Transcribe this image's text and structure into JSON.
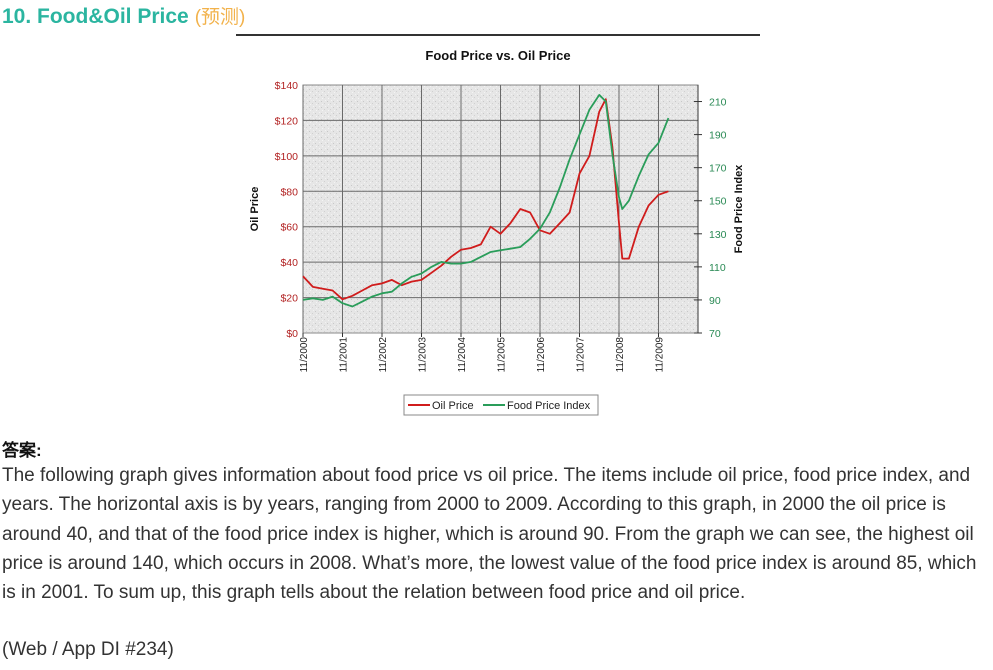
{
  "heading": {
    "number_title": "10. Food&Oil Price",
    "note": "(预测)"
  },
  "colors": {
    "heading": "#2bb5a0",
    "heading_note": "#f2b24b",
    "oil": "#d01c1c",
    "food": "#2a9d5a"
  },
  "chart_data": {
    "type": "line",
    "title": "Food Price vs. Oil Price",
    "ylabel": "Oil Price",
    "y2label": "Food Price Index",
    "ylim": [
      0,
      140
    ],
    "y2lim": [
      70,
      220
    ],
    "y_ticks": [
      "$0",
      "$20",
      "$40",
      "$60",
      "$80",
      "$100",
      "$120",
      "$140"
    ],
    "y2_ticks": [
      "70",
      "90",
      "110",
      "130",
      "150",
      "170",
      "190",
      "210"
    ],
    "x_ticks": [
      "11/2000",
      "11/2001",
      "11/2002",
      "11/2003",
      "11/2004",
      "11/2005",
      "11/2006",
      "11/2007",
      "11/2008",
      "11/2009"
    ],
    "grid": true,
    "legend_position": "bottom",
    "series": [
      {
        "name": "Oil Price",
        "axis": "left",
        "x": [
          "2000-11",
          "2001-02",
          "2001-05",
          "2001-08",
          "2001-11",
          "2002-02",
          "2002-05",
          "2002-08",
          "2002-11",
          "2003-02",
          "2003-05",
          "2003-08",
          "2003-11",
          "2004-02",
          "2004-05",
          "2004-08",
          "2004-11",
          "2005-02",
          "2005-05",
          "2005-08",
          "2005-11",
          "2006-02",
          "2006-05",
          "2006-08",
          "2006-11",
          "2007-02",
          "2007-05",
          "2007-08",
          "2007-11",
          "2008-02",
          "2008-05",
          "2008-07",
          "2008-09",
          "2008-11",
          "2008-12",
          "2009-02",
          "2009-05",
          "2009-08",
          "2009-11",
          "2010-02"
        ],
        "values": [
          32,
          26,
          25,
          24,
          19,
          21,
          24,
          27,
          28,
          30,
          27,
          29,
          30,
          34,
          38,
          43,
          47,
          48,
          50,
          60,
          56,
          62,
          70,
          68,
          58,
          56,
          62,
          68,
          90,
          100,
          125,
          132,
          105,
          62,
          42,
          42,
          60,
          72,
          78,
          80
        ]
      },
      {
        "name": "Food Price Index",
        "axis": "right",
        "x": [
          "2000-11",
          "2001-02",
          "2001-05",
          "2001-08",
          "2001-11",
          "2002-02",
          "2002-05",
          "2002-08",
          "2002-11",
          "2003-02",
          "2003-05",
          "2003-08",
          "2003-11",
          "2004-02",
          "2004-05",
          "2004-08",
          "2004-11",
          "2005-02",
          "2005-05",
          "2005-08",
          "2005-11",
          "2006-02",
          "2006-05",
          "2006-08",
          "2006-11",
          "2007-02",
          "2007-05",
          "2007-08",
          "2007-11",
          "2008-02",
          "2008-05",
          "2008-07",
          "2008-09",
          "2008-11",
          "2008-12",
          "2009-02",
          "2009-05",
          "2009-08",
          "2009-11",
          "2010-02"
        ],
        "values": [
          90,
          91,
          90,
          92,
          88,
          86,
          89,
          92,
          94,
          95,
          100,
          104,
          106,
          110,
          113,
          112,
          112,
          113,
          116,
          119,
          120,
          121,
          122,
          127,
          133,
          143,
          158,
          175,
          190,
          205,
          214,
          210,
          178,
          152,
          145,
          150,
          165,
          178,
          185,
          200
        ]
      }
    ]
  },
  "answer": {
    "label": "答案:",
    "text": "The following graph gives information about food price vs oil price. The items include oil price, food price index, and years. The horizontal axis is by years, ranging from 2000 to 2009. According to this graph, in 2000 the oil price is around 40, and that of the food price index is higher, which is around 90. From the graph we can see, the highest oil price is around 140, which occurs in 2008. What’s more, the lowest value of the food price index is around 85, which is in 2001. To sum up, this graph tells about the relation between food price and oil price.",
    "source": "(Web / App DI #234)"
  }
}
